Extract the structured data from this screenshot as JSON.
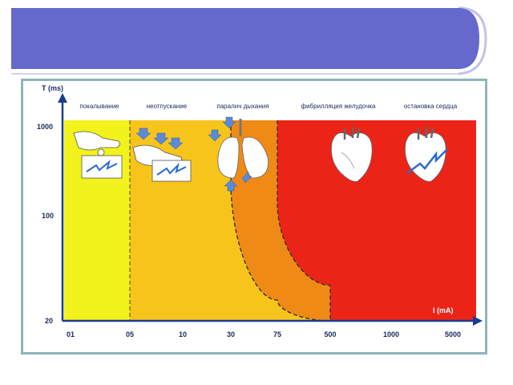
{
  "slide": {
    "header_color": "#6668cc",
    "frame_color": "#8fb5b8"
  },
  "chart_data": {
    "type": "area",
    "title": "",
    "xlabel": "I (mA)",
    "ylabel": "T (ms)",
    "x_scale": "log",
    "y_scale": "log",
    "x_ticks": [
      "01",
      "05",
      "10",
      "30",
      "75",
      "500",
      "1000",
      "5000"
    ],
    "y_ticks": [
      "1000",
      "100",
      "20"
    ],
    "grid": false,
    "zones": [
      {
        "name": "покалывание",
        "color": "#f2f21c",
        "icon": "hand-touch-icon"
      },
      {
        "name": "неотпускание",
        "color": "#f7c41c",
        "icon": "hand-grip-icon"
      },
      {
        "name": "паралич дыхания",
        "color": "#f08a16",
        "icon": "lungs-icon"
      },
      {
        "name": "фибрилляция желудочка",
        "color": "#ec2418",
        "icon": "heart-icon"
      },
      {
        "name": "остановка сердца",
        "color": "#ec2418",
        "icon": "heart-lightning-icon"
      }
    ],
    "boundaries": [
      {
        "from": "покалывание",
        "to": "неотпускание",
        "style": "dashed",
        "points": [
          {
            "x": "05",
            "y": 1000
          },
          {
            "x": "05",
            "y": 20
          }
        ]
      },
      {
        "from": "неотпускание",
        "to": "паралич дыхания",
        "style": "dashed",
        "points": [
          {
            "x": "30",
            "y": 1000
          },
          {
            "x": "30",
            "y": 300
          },
          {
            "x": "75",
            "y": 30
          },
          {
            "x": "500",
            "y": 20
          }
        ]
      },
      {
        "from": "паралич дыхания",
        "to": "фибрилляция желудочка",
        "style": "dashed",
        "points": [
          {
            "x": "75",
            "y": 1000
          },
          {
            "x": "75",
            "y": 200
          },
          {
            "x": "500",
            "y": 40
          },
          {
            "x": "500",
            "y": 20
          }
        ]
      }
    ]
  }
}
